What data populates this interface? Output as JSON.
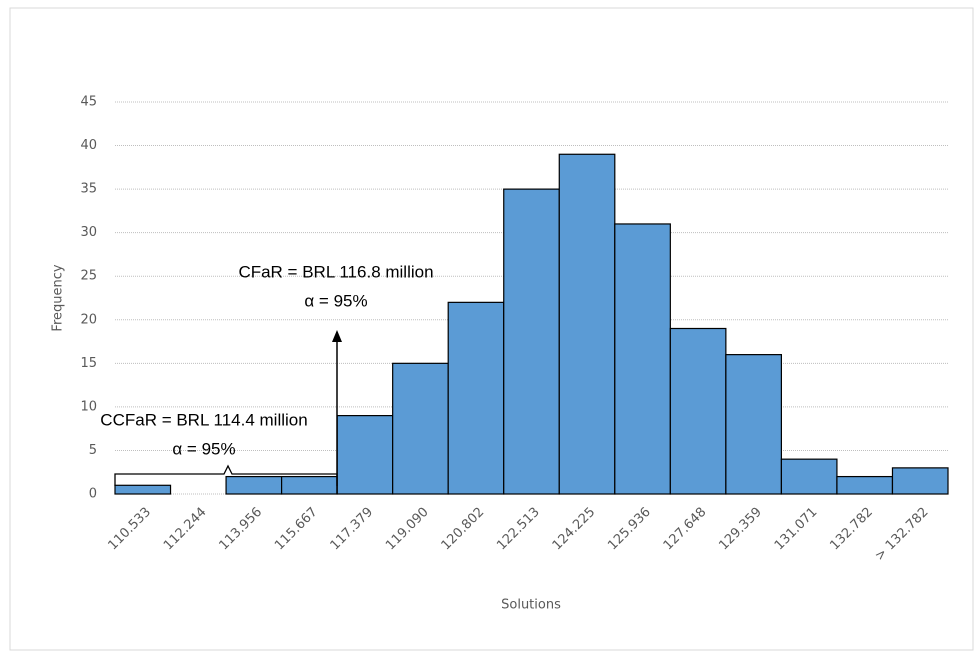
{
  "chart_data": {
    "type": "bar",
    "categories": [
      "110.533",
      "112.244",
      "113.956",
      "115.667",
      "117.379",
      "119.090",
      "120.802",
      "122.513",
      "124.225",
      "125.936",
      "127.648",
      "129.359",
      "131.071",
      "132.782",
      "> 132.782"
    ],
    "values": [
      1,
      0,
      2,
      2,
      9,
      15,
      22,
      35,
      39,
      31,
      19,
      16,
      4,
      2,
      3
    ],
    "color": "#5b9bd5",
    "ylim": [
      0,
      45
    ],
    "yticks": [
      0,
      5,
      10,
      15,
      20,
      25,
      30,
      35,
      40,
      45
    ],
    "grid": true,
    "y_label": "Frequency",
    "x_label": "Solutions",
    "annotations": [
      "CFaR = BRL 116.8 million",
      "α = 95%",
      "CCFaR = BRL 114.4 million",
      "α = 95%"
    ]
  }
}
